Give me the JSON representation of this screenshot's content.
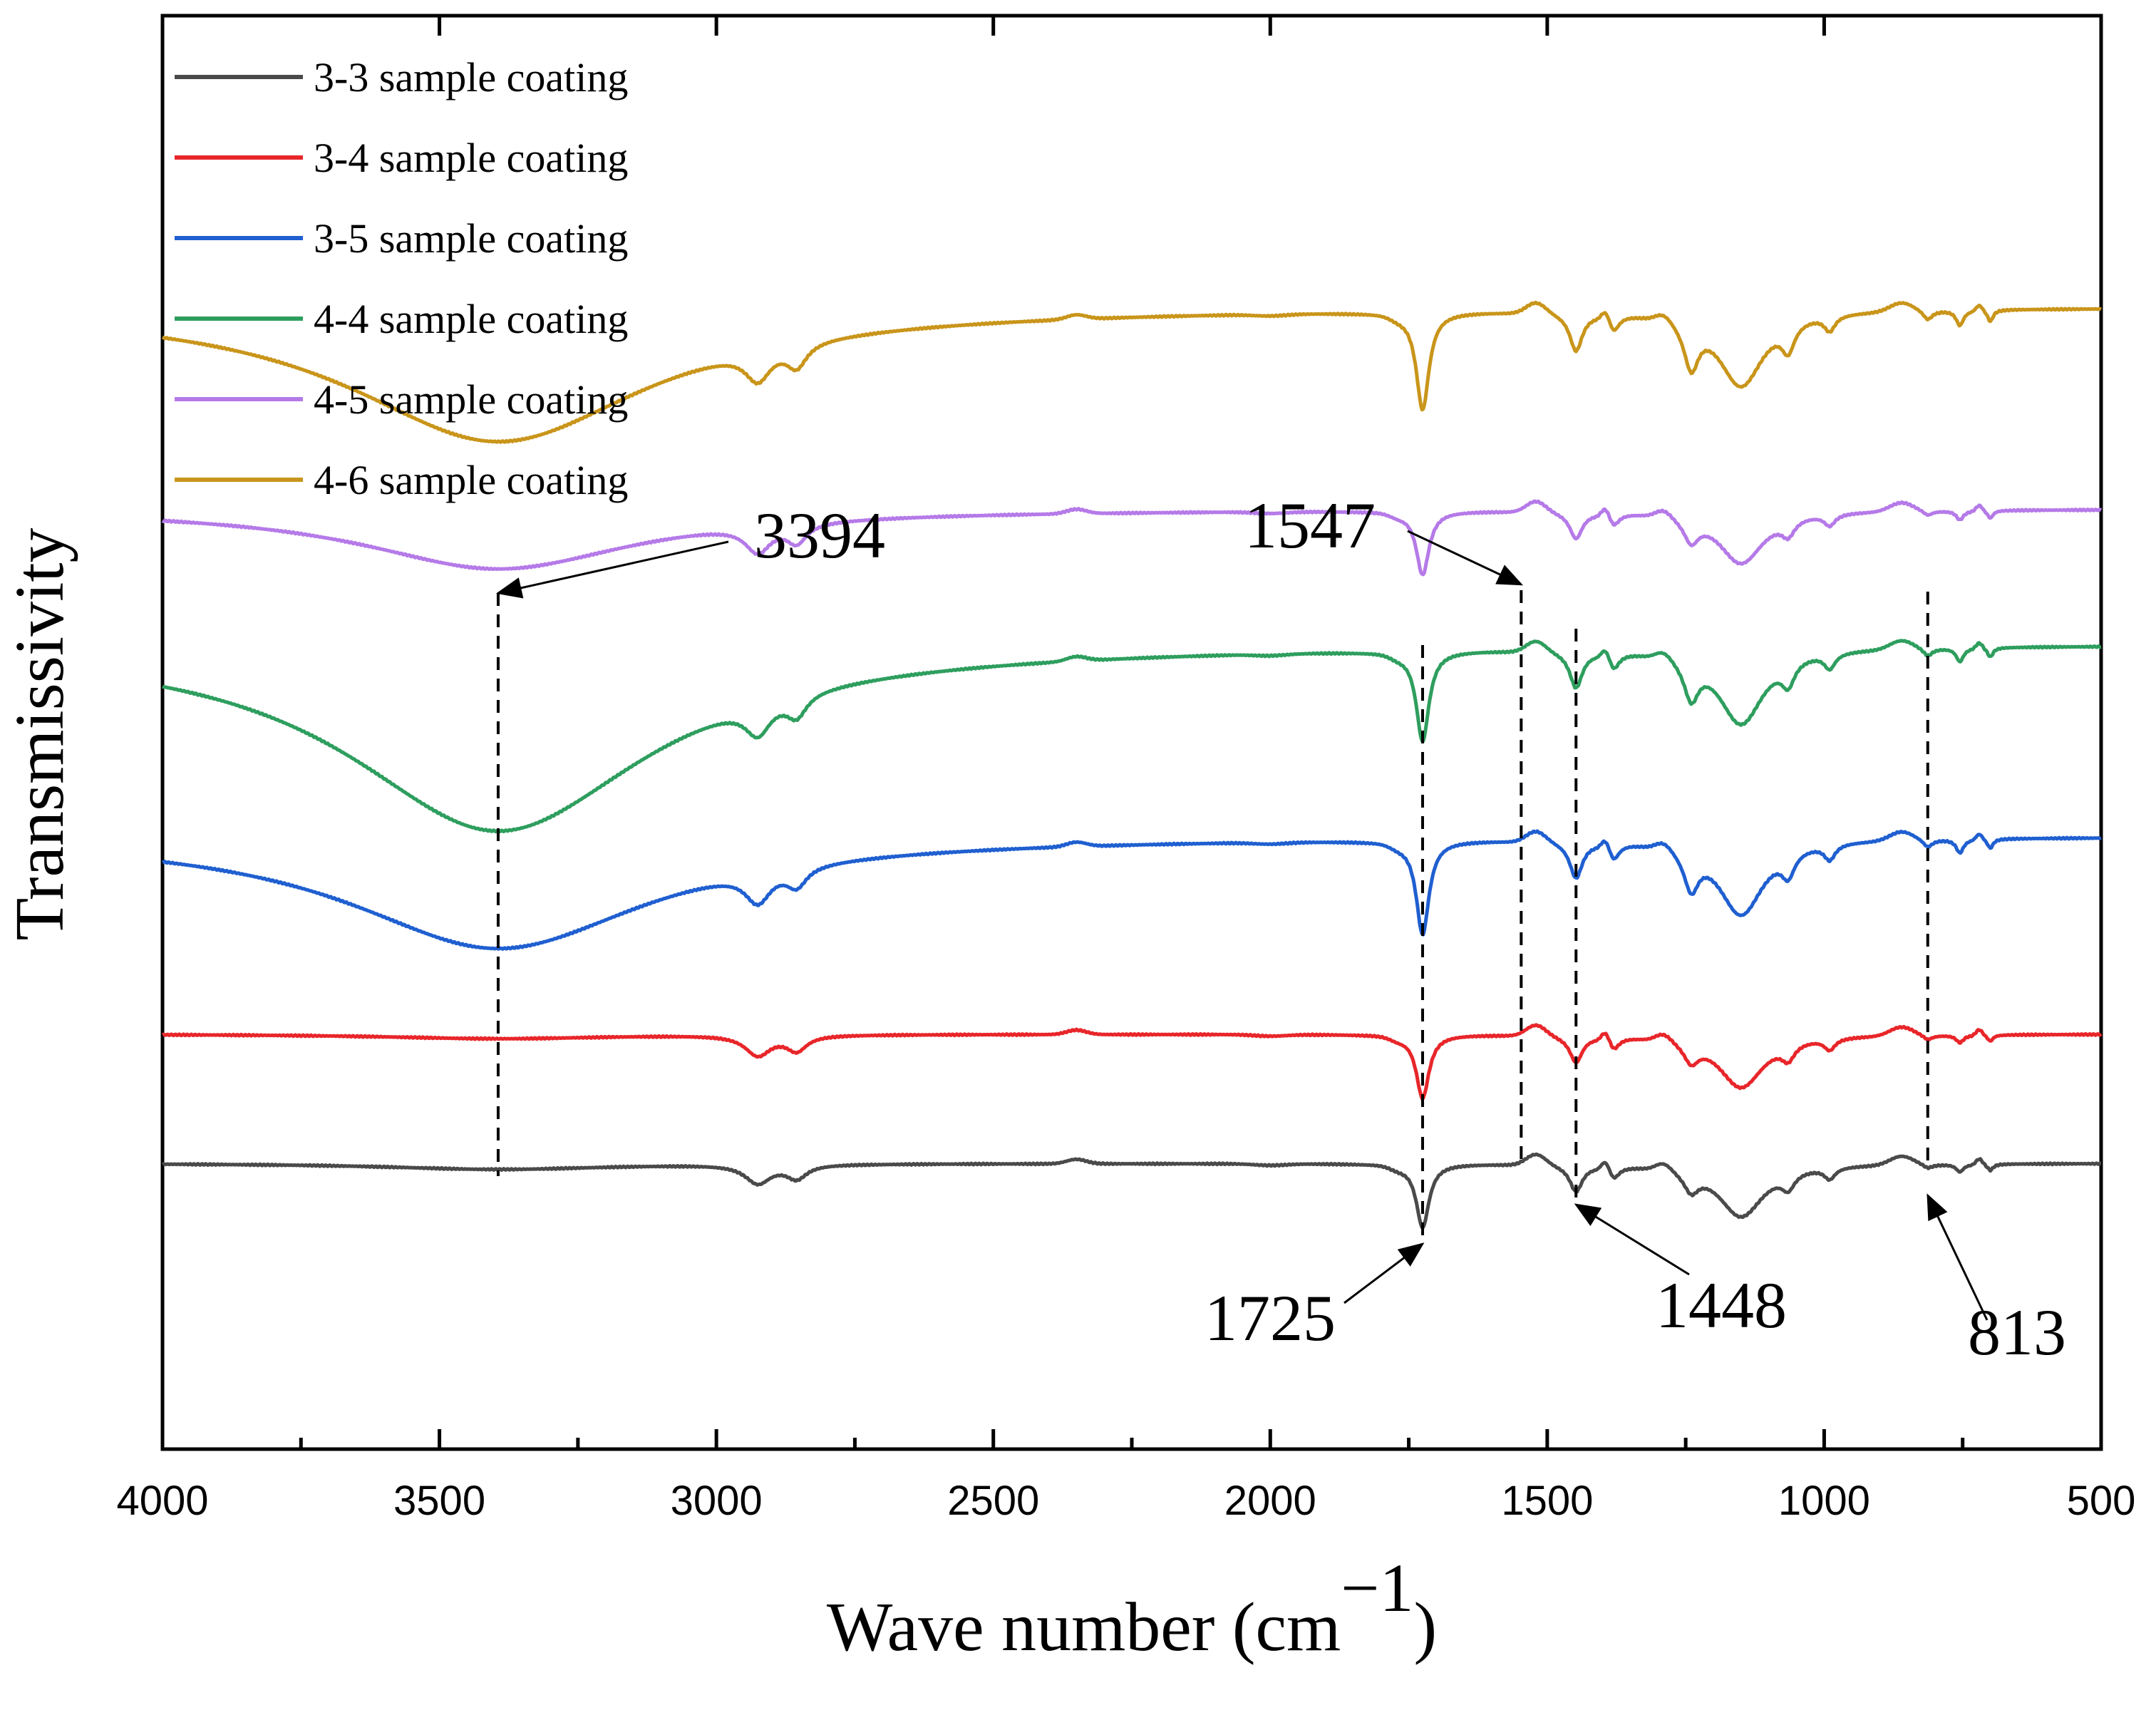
{
  "chart_data": {
    "type": "line",
    "title": "",
    "xlabel": "Wave number (cm",
    "xlabel_superscript": "−1",
    "xlabel_close": ")",
    "ylabel": "Transmissivity",
    "xlim": [
      4000,
      500
    ],
    "x_reversed": true,
    "y_ticks_shown": false,
    "x_ticks": [
      4000,
      3500,
      3000,
      2500,
      2000,
      1500,
      1000,
      500
    ],
    "x_tick_labels": [
      "4000",
      "3500",
      "3000",
      "2500",
      "2000",
      "1500",
      "1000",
      "500"
    ],
    "legend_position": "top-left",
    "series": [
      {
        "name": "3-3 sample coating",
        "color": "#4a4a4a",
        "baseline": 0.0,
        "bands": [
          [
            3394,
            0.008,
            250
          ],
          [
            2925,
            0.025,
            28
          ],
          [
            2855,
            0.018,
            22
          ],
          [
            1725,
            0.085,
            14
          ],
          [
            1448,
            0.035,
            14
          ],
          [
            1380,
            0.015,
            12
          ],
          [
            1240,
            0.025,
            16
          ],
          [
            1150,
            0.07,
            50
          ],
          [
            1065,
            0.02,
            14
          ],
          [
            990,
            0.015,
            12
          ],
          [
            813,
            0.005,
            10
          ],
          [
            755,
            0.01,
            8
          ],
          [
            700,
            0.008,
            6
          ]
        ]
      },
      {
        "name": "3-4 sample coating",
        "color": "#e8262a",
        "baseline": 0.92,
        "bands": [
          [
            3394,
            0.006,
            250
          ],
          [
            2925,
            0.027,
            28
          ],
          [
            2855,
            0.02,
            22
          ],
          [
            1725,
            0.085,
            14
          ],
          [
            1448,
            0.035,
            14
          ],
          [
            1380,
            0.015,
            12
          ],
          [
            1240,
            0.025,
            16
          ],
          [
            1150,
            0.07,
            50
          ],
          [
            1065,
            0.02,
            14
          ],
          [
            990,
            0.015,
            12
          ],
          [
            813,
            0.006,
            10
          ],
          [
            755,
            0.01,
            8
          ],
          [
            700,
            0.008,
            6
          ]
        ]
      },
      {
        "name": "3-5 sample coating",
        "color": "#1f5fd0",
        "baseline": 2.33,
        "bands": [
          [
            3394,
            0.15,
            330
          ],
          [
            2925,
            0.04,
            28
          ],
          [
            2855,
            0.025,
            22
          ],
          [
            1725,
            0.125,
            14
          ],
          [
            1448,
            0.048,
            14
          ],
          [
            1380,
            0.02,
            12
          ],
          [
            1240,
            0.05,
            16
          ],
          [
            1150,
            0.1,
            50
          ],
          [
            1065,
            0.03,
            14
          ],
          [
            990,
            0.02,
            12
          ],
          [
            813,
            0.01,
            10
          ],
          [
            755,
            0.018,
            8
          ],
          [
            700,
            0.012,
            6
          ]
        ]
      },
      {
        "name": "4-4 sample coating",
        "color": "#2e9e5e",
        "baseline": 3.7,
        "bands": [
          [
            3394,
            0.25,
            330
          ],
          [
            2925,
            0.04,
            28
          ],
          [
            2855,
            0.028,
            22
          ],
          [
            1725,
            0.12,
            14
          ],
          [
            1448,
            0.048,
            14
          ],
          [
            1380,
            0.02,
            12
          ],
          [
            1240,
            0.05,
            16
          ],
          [
            1150,
            0.1,
            50
          ],
          [
            1065,
            0.03,
            14
          ],
          [
            990,
            0.02,
            12
          ],
          [
            813,
            0.01,
            10
          ],
          [
            755,
            0.018,
            8
          ],
          [
            700,
            0.012,
            6
          ]
        ]
      },
      {
        "name": "4-5 sample coating",
        "color": "#b57ae8",
        "baseline": 4.66,
        "bands": [
          [
            3394,
            0.08,
            300
          ],
          [
            2925,
            0.035,
            28
          ],
          [
            2855,
            0.025,
            22
          ],
          [
            1725,
            0.085,
            14
          ],
          [
            1448,
            0.035,
            14
          ],
          [
            1380,
            0.015,
            12
          ],
          [
            1240,
            0.03,
            16
          ],
          [
            1150,
            0.07,
            50
          ],
          [
            1065,
            0.02,
            14
          ],
          [
            990,
            0.015,
            12
          ],
          [
            813,
            0.006,
            10
          ],
          [
            755,
            0.012,
            8
          ],
          [
            700,
            0.01,
            6
          ]
        ]
      },
      {
        "name": "4-6 sample coating",
        "color": "#c9951a",
        "baseline": 6.1,
        "bands": [
          [
            3394,
            0.18,
            330
          ],
          [
            2925,
            0.04,
            28
          ],
          [
            2855,
            0.03,
            22
          ],
          [
            1725,
            0.13,
            14
          ],
          [
            1448,
            0.05,
            14
          ],
          [
            1380,
            0.02,
            12
          ],
          [
            1240,
            0.06,
            16
          ],
          [
            1150,
            0.1,
            50
          ],
          [
            1065,
            0.035,
            14
          ],
          [
            990,
            0.02,
            12
          ],
          [
            813,
            0.012,
            10
          ],
          [
            755,
            0.02,
            8
          ],
          [
            700,
            0.015,
            6
          ]
        ]
      }
    ],
    "annotations": [
      {
        "label": "3394",
        "wavenumber": 3394
      },
      {
        "label": "1547",
        "wavenumber": 1547
      },
      {
        "label": "1725",
        "wavenumber": 1725
      },
      {
        "label": "1448",
        "wavenumber": 1448
      },
      {
        "label": "813",
        "wavenumber": 813
      }
    ]
  }
}
